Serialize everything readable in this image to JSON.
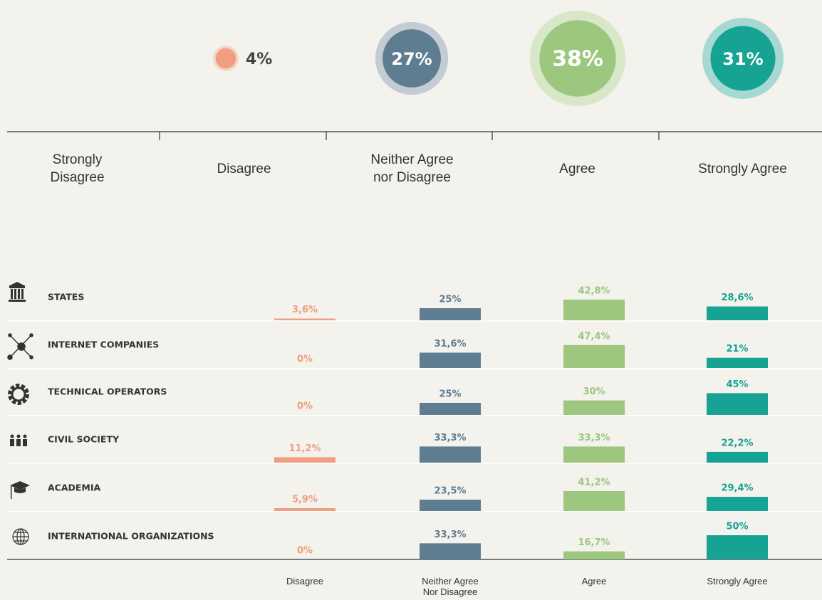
{
  "chart_data": {
    "type": "bar",
    "scale_labels": [
      "Strongly Disagree",
      "Disagree",
      "Neither Agree nor Disagree",
      "Agree",
      "Strongly Agree"
    ],
    "overall": {
      "values": [
        4,
        27,
        38,
        31
      ],
      "value_labels": [
        "4%",
        "27%",
        "38%",
        "31%"
      ],
      "colors": [
        "#ef9f80",
        "#5f7d91",
        "#9dc67f",
        "#17a394"
      ],
      "ring_colors": [
        "#f7d3c3",
        "#c3ccd2",
        "#d7e7c8",
        "#a6d9d1"
      ]
    },
    "categories": [
      "STATES",
      "INTERNET COMPANIES",
      "TECHNICAL OPERATORS",
      "CIVIL SOCIETY",
      "ACADEMIA",
      "INTERNATIONAL ORGANIZATIONS"
    ],
    "series": [
      {
        "name": "Disagree",
        "color": "#ef9f80",
        "values": [
          3.6,
          0,
          0,
          11.2,
          5.9,
          0
        ],
        "value_labels": [
          "3,6%",
          "0%",
          "0%",
          "11,2%",
          "5,9%",
          "0%"
        ]
      },
      {
        "name": "Neither Agree Nor Disagree",
        "color": "#5f7d91",
        "values": [
          25,
          31.6,
          25,
          33.3,
          23.5,
          33.3
        ],
        "value_labels": [
          "25%",
          "31,6%",
          "25%",
          "33,3%",
          "23,5%",
          "33,3%"
        ]
      },
      {
        "name": "Agree",
        "color": "#9dc67f",
        "values": [
          42.8,
          47.4,
          30,
          33.3,
          41.2,
          16.7
        ],
        "value_labels": [
          "42,8%",
          "47,4%",
          "30%",
          "33,3%",
          "41,2%",
          "16,7%"
        ]
      },
      {
        "name": "Strongly Agree",
        "color": "#17a394",
        "values": [
          28.6,
          21,
          45,
          22.2,
          29.4,
          50
        ],
        "value_labels": [
          "28,6%",
          "21%",
          "45%",
          "22,2%",
          "29,4%",
          "50%"
        ]
      }
    ]
  }
}
